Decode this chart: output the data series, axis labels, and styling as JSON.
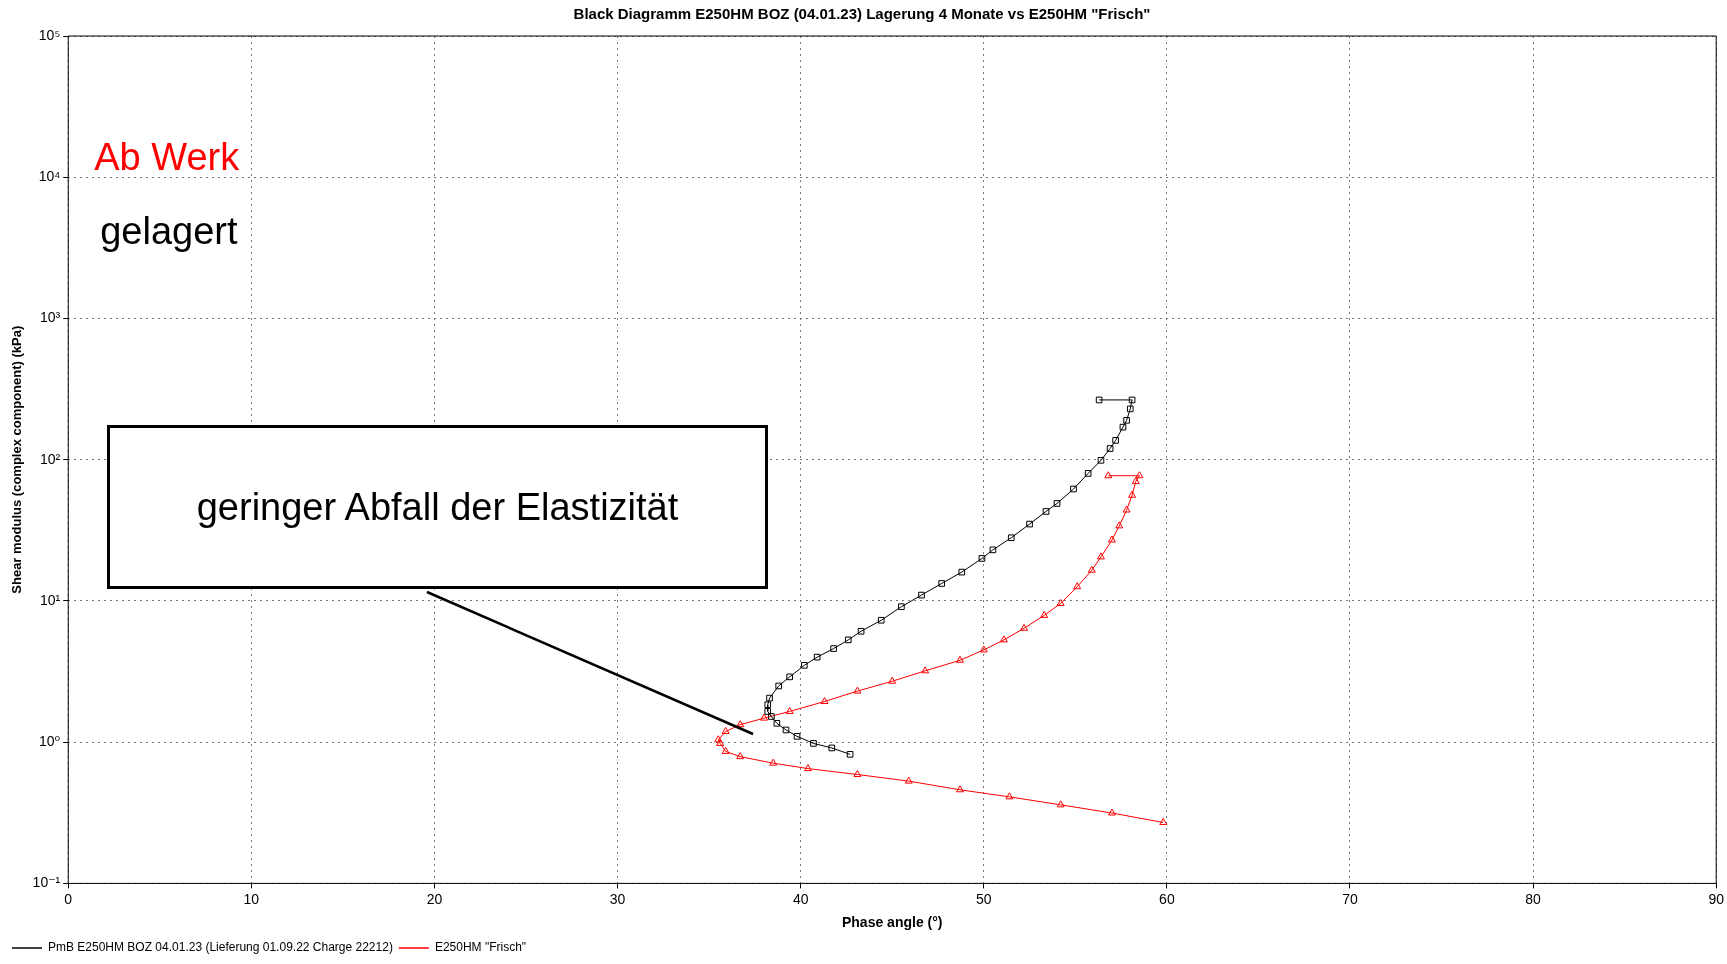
{
  "chart_data": {
    "type": "line",
    "title": "Black Diagramm E250HM BOZ (04.01.23) Lagerung 4 Monate vs E250HM \"Frisch\"",
    "xlabel": "Phase angle (°)",
    "ylabel": "Shear modulus (complex component) (kPa)",
    "xlim": [
      0,
      90
    ],
    "xticks": [
      0,
      10,
      20,
      30,
      40,
      50,
      60,
      70,
      80,
      90
    ],
    "ylim": [
      0.1,
      100000
    ],
    "yticks": [
      {
        "value": 0.1,
        "label": "10⁻¹"
      },
      {
        "value": 1,
        "label": "10⁰"
      },
      {
        "value": 10,
        "label": "10¹"
      },
      {
        "value": 100,
        "label": "10²"
      },
      {
        "value": 1000,
        "label": "10³"
      },
      {
        "value": 10000,
        "label": "10⁴"
      },
      {
        "value": 100000,
        "label": "10⁵"
      }
    ],
    "log": "y",
    "grid": true,
    "legend": "bottom",
    "line_style": "solid",
    "annotations": [
      "Ab Werk",
      "gelagert",
      "geringer Abfall der Elastizität"
    ],
    "series": [
      {
        "name": "PmB E250HM BOZ 04.01.23 (Lieferung 01.09.22 Charge 22212)",
        "color": "#000000",
        "marker": "square",
        "x": [
          56.3,
          58.1,
          58.0,
          57.8,
          57.6,
          57.2,
          56.9,
          56.4,
          55.7,
          54.9,
          54.0,
          53.4,
          52.5,
          51.5,
          50.5,
          49.9,
          48.8,
          47.7,
          46.6,
          45.5,
          44.4,
          43.3,
          42.6,
          41.8,
          40.9,
          40.2,
          39.4,
          38.8,
          38.3,
          38.2,
          38.2,
          38.4,
          38.7,
          39.2,
          39.8,
          40.7,
          41.7,
          42.7
        ],
        "values": [
          265,
          265,
          229,
          190,
          170,
          137,
          120,
          99,
          80,
          62,
          49,
          43,
          35,
          28,
          23,
          20,
          16,
          13.3,
          11,
          9.1,
          7.3,
          6.1,
          5.3,
          4.6,
          4.0,
          3.5,
          2.9,
          2.5,
          2.05,
          1.84,
          1.65,
          1.52,
          1.36,
          1.22,
          1.1,
          0.98,
          0.91,
          0.82
        ]
      },
      {
        "name": "E250HM \"Frisch\"",
        "color": "#ff0000",
        "marker": "triangle",
        "x": [
          56.8,
          58.5,
          58.3,
          58.1,
          57.8,
          57.4,
          57.0,
          56.4,
          55.9,
          55.1,
          54.2,
          53.3,
          52.2,
          51.1,
          50.0,
          48.7,
          46.8,
          45.0,
          43.1,
          41.3,
          39.4,
          38.0,
          36.7,
          35.9,
          35.5,
          35.6,
          35.9,
          36.7,
          38.5,
          40.4,
          43.1,
          45.9,
          48.7,
          51.4,
          54.2,
          57.0,
          59.8
        ],
        "values": [
          77,
          77,
          70,
          56,
          44,
          34,
          27,
          20.5,
          16.5,
          12.6,
          9.6,
          7.9,
          6.4,
          5.3,
          4.5,
          3.8,
          3.2,
          2.7,
          2.3,
          1.94,
          1.65,
          1.48,
          1.33,
          1.19,
          1.04,
          0.98,
          0.86,
          0.79,
          0.71,
          0.65,
          0.59,
          0.53,
          0.46,
          0.41,
          0.36,
          0.315,
          0.27
        ]
      }
    ]
  }
}
